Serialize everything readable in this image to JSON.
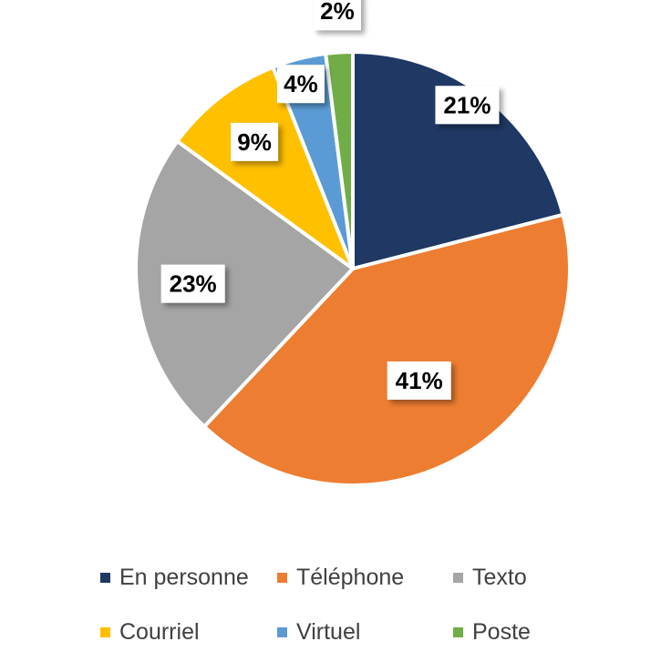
{
  "chart_data": {
    "type": "pie",
    "categories": [
      "En personne",
      "Téléphone",
      "Texto",
      "Courriel",
      "Virtuel",
      "Poste"
    ],
    "values": [
      21,
      41,
      23,
      9,
      4,
      2
    ],
    "data_labels": [
      "21%",
      "41%",
      "23%",
      "9%",
      "4%",
      "2%"
    ],
    "colors": [
      "#1F3864",
      "#ED7D31",
      "#A5A5A5",
      "#FFC000",
      "#5B9BD5",
      "#70AD47"
    ],
    "start_angle": "12 o'clock, clockwise",
    "legend_position": "bottom",
    "title": ""
  }
}
